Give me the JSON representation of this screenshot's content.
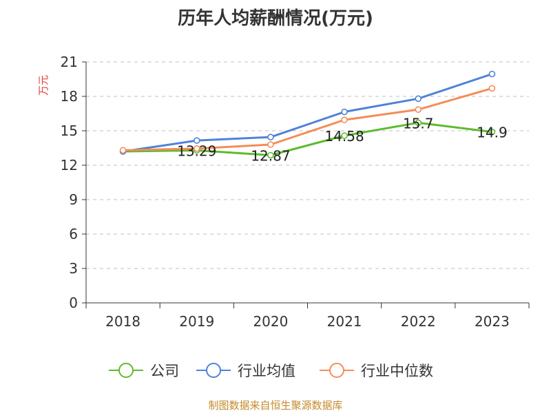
{
  "chart_data": {
    "type": "line",
    "title": "历年人均薪酬情况(万元)",
    "ylabel": "万元",
    "xlabel": "",
    "categories": [
      "2018",
      "2019",
      "2020",
      "2021",
      "2022",
      "2023"
    ],
    "ylim": [
      0,
      21
    ],
    "yticks": [
      0,
      3,
      6,
      9,
      12,
      15,
      18,
      21
    ],
    "grid": "horizontal dashed",
    "legend_position": "bottom",
    "series": [
      {
        "name": "公司",
        "color": "#5dbb2c",
        "values": [
          13.2,
          13.29,
          12.87,
          14.58,
          15.7,
          14.9
        ],
        "labels": [
          "",
          "13.29",
          "12.87",
          "14.58",
          "15.7",
          "14.9"
        ]
      },
      {
        "name": "行业均值",
        "color": "#4e82d8",
        "values": [
          13.2,
          14.15,
          14.45,
          16.65,
          17.8,
          19.95
        ]
      },
      {
        "name": "行业中位数",
        "color": "#f48d57",
        "values": [
          13.3,
          13.45,
          13.8,
          15.95,
          16.85,
          18.7
        ]
      }
    ]
  },
  "footer": "制图数据来自恒生聚源数据库"
}
